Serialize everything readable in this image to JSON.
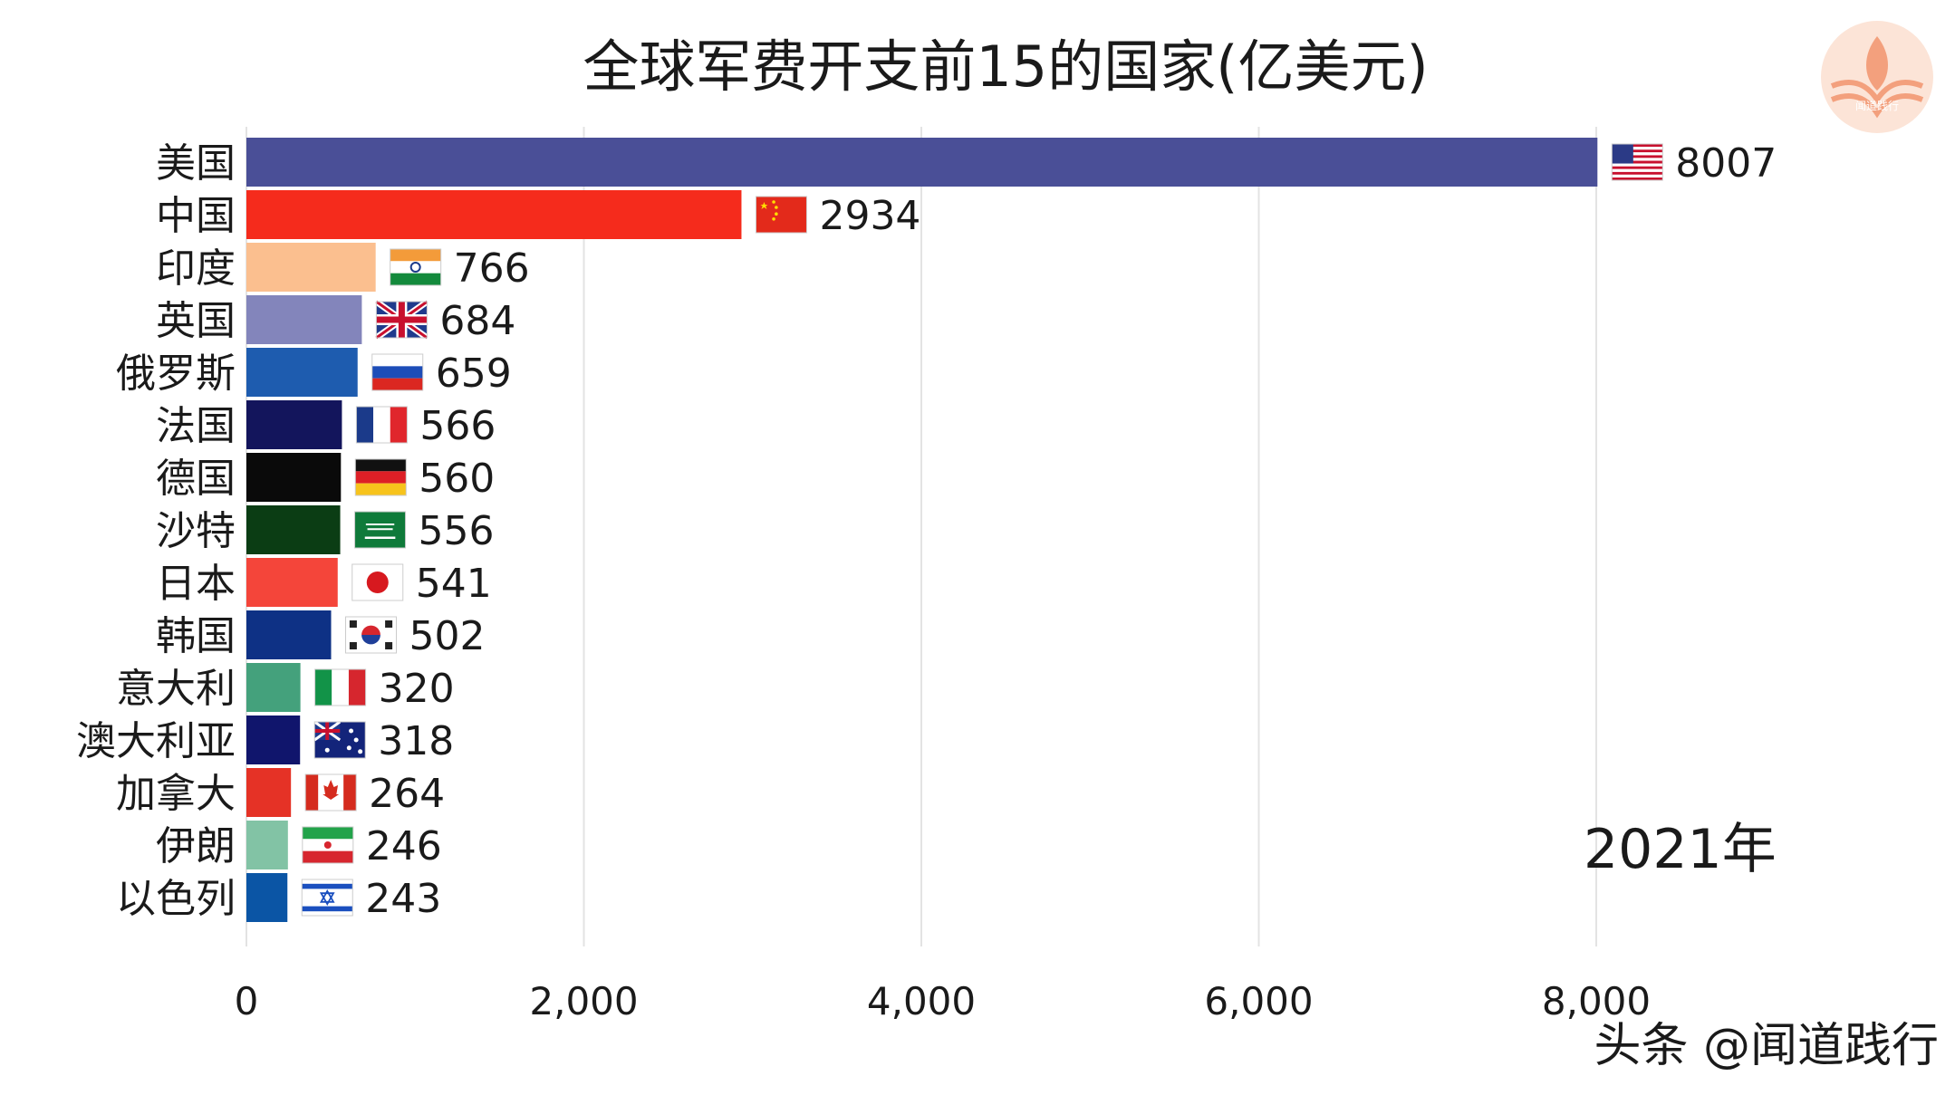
{
  "chart_data": {
    "type": "bar",
    "orientation": "horizontal",
    "title": "全球军费开支前15的国家(亿美元)",
    "year": "2021年",
    "categories": [
      "美国",
      "中国",
      "印度",
      "英国",
      "俄罗斯",
      "法国",
      "德国",
      "沙特",
      "日本",
      "韩国",
      "意大利",
      "澳大利亚",
      "加拿大",
      "伊朗",
      "以色列"
    ],
    "values": [
      8007,
      2934,
      766,
      684,
      659,
      566,
      560,
      556,
      541,
      502,
      320,
      318,
      264,
      246,
      243
    ],
    "value_labels": [
      "8007",
      "2934",
      "766",
      "684",
      "659",
      "566",
      "560",
      "556",
      "541",
      "502",
      "320",
      "318",
      "264",
      "246",
      "243"
    ],
    "colors": [
      "#4a4f97",
      "#f52b1c",
      "#fbbf8f",
      "#8385bb",
      "#1e5caf",
      "#13155c",
      "#0a0a0a",
      "#0b3d14",
      "#f4453a",
      "#0e3185",
      "#44a17c",
      "#10156c",
      "#e53226",
      "#82c3a5",
      "#0b55a5"
    ],
    "flags": [
      "us-flag",
      "cn-flag",
      "in-flag",
      "gb-flag",
      "ru-flag",
      "fr-flag",
      "de-flag",
      "sa-flag",
      "jp-flag",
      "kr-flag",
      "it-flag",
      "au-flag",
      "ca-flag",
      "ir-flag",
      "il-flag"
    ],
    "x_ticks": [
      0,
      2000,
      4000,
      6000,
      8000
    ],
    "x_tick_labels": [
      "0",
      "2,000",
      "4,000",
      "6,000",
      "8,000"
    ],
    "xlim": [
      0,
      8000
    ],
    "grid": true,
    "xlabel": "",
    "ylabel": ""
  },
  "watermark": {
    "text": "头条 @闻道践行",
    "logo": "闻道践行",
    "logo_icon": "lotus-book-logo",
    "logo_color": "#f3a07d"
  }
}
